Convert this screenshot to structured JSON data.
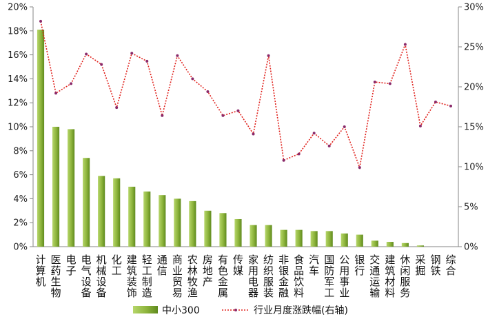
{
  "chart_data": {
    "type": "bar",
    "categories": [
      "计算机",
      "医药生物",
      "电子",
      "电气设备",
      "机械设备",
      "化工",
      "建筑装饰",
      "轻工制造",
      "通信",
      "商业贸易",
      "农林牧渔",
      "房地产",
      "有色金属",
      "传媒",
      "家用电器",
      "纺织服装",
      "非银金融",
      "食品饮料",
      "汽车",
      "国防军工",
      "公用事业",
      "银行",
      "交通运输",
      "建筑材料",
      "休闲服务",
      "采掘",
      "钢铁",
      "综合"
    ],
    "series": [
      {
        "name": "中小300",
        "type": "bar",
        "axis": "left",
        "color": "#8db43c",
        "values": [
          18.1,
          10.0,
          9.8,
          7.4,
          5.9,
          5.7,
          5.0,
          4.6,
          4.3,
          4.0,
          3.8,
          3.0,
          2.8,
          2.3,
          1.8,
          1.8,
          1.4,
          1.4,
          1.3,
          1.3,
          1.1,
          1.0,
          0.5,
          0.4,
          0.3,
          0.1,
          0.0,
          0.0
        ]
      },
      {
        "name": "行业月度涨跌幅(右轴)",
        "type": "line",
        "axis": "right",
        "color": "#e0201b",
        "values": [
          28.2,
          19.2,
          20.4,
          24.1,
          22.8,
          17.4,
          24.2,
          23.2,
          16.4,
          23.9,
          21.0,
          19.4,
          16.4,
          17.0,
          14.1,
          23.9,
          10.8,
          11.6,
          14.2,
          12.6,
          15.0,
          9.9,
          20.6,
          20.4,
          25.3,
          15.1,
          18.1,
          17.6
        ]
      }
    ],
    "y_left": {
      "ticks": [
        "0%",
        "2%",
        "4%",
        "6%",
        "8%",
        "10%",
        "12%",
        "14%",
        "16%",
        "18%",
        "20%"
      ],
      "lim": [
        0,
        20
      ]
    },
    "y_right": {
      "ticks": [
        "0%",
        "5%",
        "10%",
        "15%",
        "20%",
        "25%",
        "30%"
      ],
      "lim": [
        0,
        30
      ]
    },
    "legend": {
      "position": "bottom",
      "items": [
        "中小300",
        "行业月度涨跌幅(右轴)"
      ]
    },
    "grid": false
  }
}
